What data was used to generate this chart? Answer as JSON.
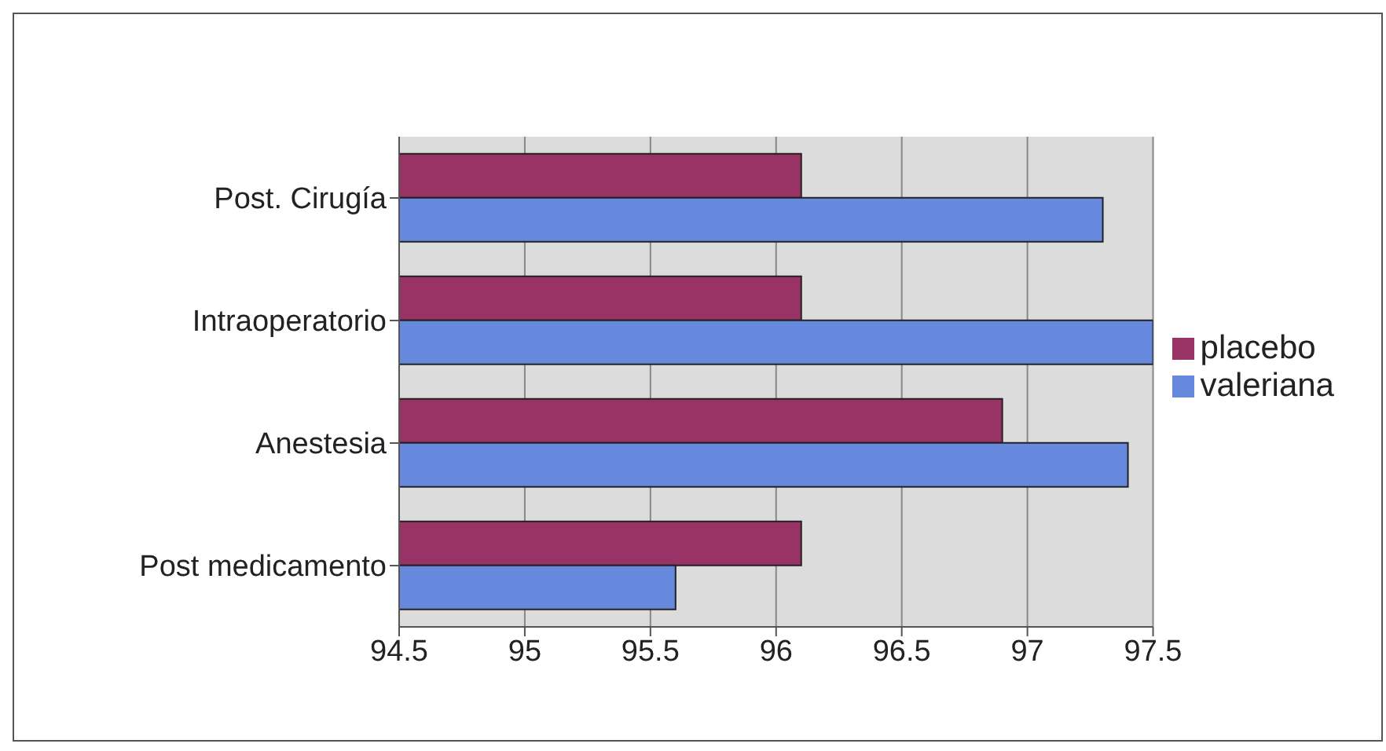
{
  "chart_data": {
    "type": "bar",
    "orientation": "horizontal",
    "categories": [
      "Post. Cirugía",
      "Intraoperatorio",
      "Anestesia",
      "Post medicamento"
    ],
    "series": [
      {
        "name": "placebo",
        "color": "#993366",
        "values": [
          96.1,
          96.1,
          96.9,
          96.1
        ]
      },
      {
        "name": "valeriana",
        "color": "#6688dd",
        "values": [
          97.3,
          97.5,
          97.4,
          95.6
        ]
      }
    ],
    "xlim": [
      94.5,
      97.5
    ],
    "xticks": [
      94.5,
      95,
      95.5,
      96,
      96.5,
      97,
      97.5
    ],
    "grid": "x",
    "legend": "right"
  }
}
